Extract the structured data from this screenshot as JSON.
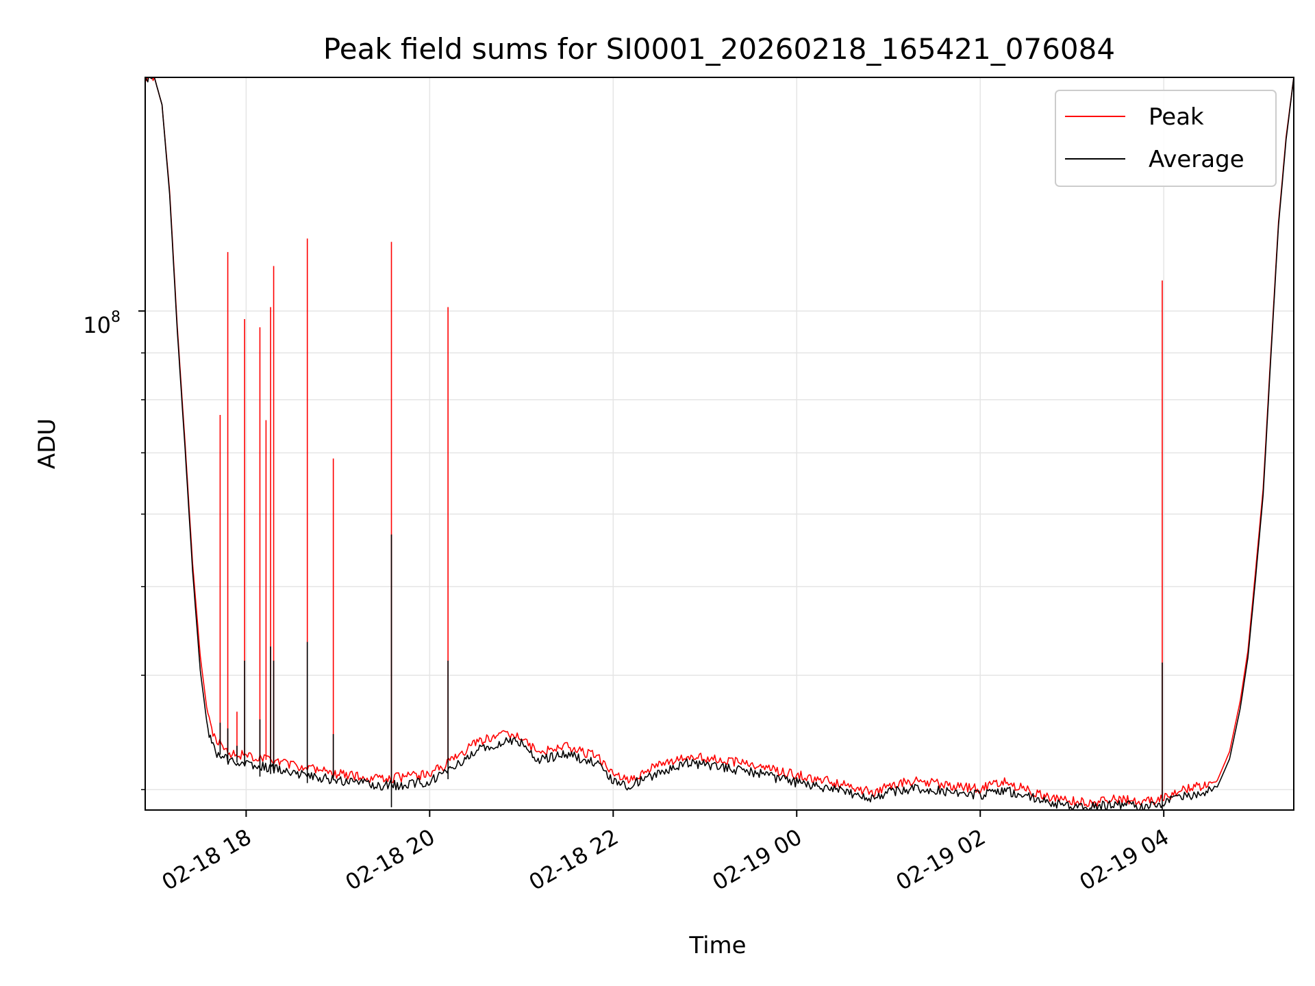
{
  "chart_data": {
    "type": "line",
    "title": "Peak field sums for SI0001_20260218_165421_076084",
    "xlabel": "Time",
    "ylabel": "ADU",
    "y_scale": "log",
    "y_tick_label": {
      "base": "10",
      "exponent": "8"
    },
    "x_ticks": [
      "02-18 18",
      "02-18 20",
      "02-18 22",
      "02-19 00",
      "02-19 02",
      "02-19 04"
    ],
    "xlim": [
      "2026-02-18 16:54",
      "2026-02-19 05:25"
    ],
    "ylim": [
      28500000,
      180000000
    ],
    "grid": true,
    "legend_position": "top-right",
    "colors": {
      "peak": "#ff0000",
      "average": "#000000",
      "grid": "#e5e5e5"
    },
    "series": [
      {
        "name": "Peak",
        "color": "#ff0000",
        "baseline_points": [
          [
            "2026-02-18 16:54",
            180000000
          ],
          [
            "2026-02-18 17:00",
            180000000
          ],
          [
            "2026-02-18 17:05",
            168000000
          ],
          [
            "2026-02-18 17:10",
            135000000
          ],
          [
            "2026-02-18 17:15",
            96000000
          ],
          [
            "2026-02-18 17:20",
            72000000
          ],
          [
            "2026-02-18 17:25",
            53000000
          ],
          [
            "2026-02-18 17:30",
            42000000
          ],
          [
            "2026-02-18 17:35",
            36000000
          ],
          [
            "2026-02-18 17:40",
            34000000
          ],
          [
            "2026-02-18 17:50",
            32900000
          ],
          [
            "2026-02-18 18:10",
            32400000
          ],
          [
            "2026-02-18 18:40",
            31700000
          ],
          [
            "2026-02-18 19:00",
            31200000
          ],
          [
            "2026-02-18 19:30",
            30800000
          ],
          [
            "2026-02-18 19:45",
            31000000
          ],
          [
            "2026-02-18 20:00",
            31200000
          ],
          [
            "2026-02-18 20:15",
            32300000
          ],
          [
            "2026-02-18 20:30",
            33800000
          ],
          [
            "2026-02-18 20:50",
            34600000
          ],
          [
            "2026-02-18 21:00",
            34400000
          ],
          [
            "2026-02-18 21:10",
            32900000
          ],
          [
            "2026-02-18 21:30",
            33400000
          ],
          [
            "2026-02-18 21:50",
            32600000
          ],
          [
            "2026-02-18 22:00",
            31100000
          ],
          [
            "2026-02-18 22:10",
            30800000
          ],
          [
            "2026-02-18 22:30",
            31900000
          ],
          [
            "2026-02-18 22:50",
            32700000
          ],
          [
            "2026-02-18 23:10",
            32300000
          ],
          [
            "2026-02-18 23:30",
            32000000
          ],
          [
            "2026-02-18 23:50",
            31400000
          ],
          [
            "2026-02-19 00:10",
            30900000
          ],
          [
            "2026-02-19 00:30",
            30400000
          ],
          [
            "2026-02-19 00:50",
            29800000
          ],
          [
            "2026-02-19 01:00",
            30300000
          ],
          [
            "2026-02-19 01:20",
            30700000
          ],
          [
            "2026-02-19 01:40",
            30300000
          ],
          [
            "2026-02-19 02:00",
            30100000
          ],
          [
            "2026-02-19 02:15",
            30600000
          ],
          [
            "2026-02-19 02:30",
            30000000
          ],
          [
            "2026-02-19 02:50",
            29300000
          ],
          [
            "2026-02-19 03:10",
            29000000
          ],
          [
            "2026-02-19 03:30",
            29300000
          ],
          [
            "2026-02-19 03:50",
            29100000
          ],
          [
            "2026-02-19 04:00",
            29400000
          ],
          [
            "2026-02-19 04:10",
            29900000
          ],
          [
            "2026-02-19 04:25",
            30300000
          ],
          [
            "2026-02-19 04:35",
            30700000
          ],
          [
            "2026-02-19 04:43",
            33000000
          ],
          [
            "2026-02-19 04:50",
            37500000
          ],
          [
            "2026-02-19 04:55",
            42500000
          ],
          [
            "2026-02-19 05:00",
            52000000
          ],
          [
            "2026-02-19 05:05",
            64000000
          ],
          [
            "2026-02-19 05:10",
            90000000
          ],
          [
            "2026-02-19 05:15",
            125000000
          ],
          [
            "2026-02-19 05:20",
            155000000
          ],
          [
            "2026-02-19 05:25",
            180000000
          ]
        ],
        "spikes": [
          [
            "2026-02-18 17:43",
            77000000
          ],
          [
            "2026-02-18 17:48",
            116000000
          ],
          [
            "2026-02-18 17:54",
            36500000
          ],
          [
            "2026-02-18 17:59",
            98000000
          ],
          [
            "2026-02-18 18:09",
            96000000
          ],
          [
            "2026-02-18 18:13",
            76000000
          ],
          [
            "2026-02-18 18:16",
            101000000
          ],
          [
            "2026-02-18 18:18",
            112000000
          ],
          [
            "2026-02-18 18:40",
            120000000
          ],
          [
            "2026-02-18 18:57",
            69000000
          ],
          [
            "2026-02-18 19:35",
            119000000
          ],
          [
            "2026-02-18 20:12",
            101000000
          ],
          [
            "2026-02-19 03:59",
            108000000
          ]
        ]
      },
      {
        "name": "Average",
        "color": "#000000",
        "baseline_points": [
          [
            "2026-02-18 16:54",
            180000000
          ],
          [
            "2026-02-18 17:00",
            180000000
          ],
          [
            "2026-02-18 17:05",
            168000000
          ],
          [
            "2026-02-18 17:10",
            134000000
          ],
          [
            "2026-02-18 17:15",
            95000000
          ],
          [
            "2026-02-18 17:20",
            71000000
          ],
          [
            "2026-02-18 17:25",
            52000000
          ],
          [
            "2026-02-18 17:30",
            40500000
          ],
          [
            "2026-02-18 17:35",
            34800000
          ],
          [
            "2026-02-18 17:40",
            33000000
          ],
          [
            "2026-02-18 17:50",
            32200000
          ],
          [
            "2026-02-18 18:10",
            31800000
          ],
          [
            "2026-02-18 18:40",
            31100000
          ],
          [
            "2026-02-18 19:00",
            30700000
          ],
          [
            "2026-02-18 19:30",
            30300000
          ],
          [
            "2026-02-18 19:45",
            30400000
          ],
          [
            "2026-02-18 20:00",
            30600000
          ],
          [
            "2026-02-18 20:15",
            31700000
          ],
          [
            "2026-02-18 20:30",
            33100000
          ],
          [
            "2026-02-18 20:50",
            33900000
          ],
          [
            "2026-02-18 21:00",
            33700000
          ],
          [
            "2026-02-18 21:10",
            32300000
          ],
          [
            "2026-02-18 21:30",
            32800000
          ],
          [
            "2026-02-18 21:50",
            32000000
          ],
          [
            "2026-02-18 22:00",
            30600000
          ],
          [
            "2026-02-18 22:10",
            30300000
          ],
          [
            "2026-02-18 22:30",
            31300000
          ],
          [
            "2026-02-18 22:50",
            32100000
          ],
          [
            "2026-02-18 23:10",
            31700000
          ],
          [
            "2026-02-18 23:30",
            31400000
          ],
          [
            "2026-02-18 23:50",
            30800000
          ],
          [
            "2026-02-19 00:10",
            30300000
          ],
          [
            "2026-02-19 00:30",
            29900000
          ],
          [
            "2026-02-19 00:50",
            29300000
          ],
          [
            "2026-02-19 01:00",
            29800000
          ],
          [
            "2026-02-19 01:20",
            30100000
          ],
          [
            "2026-02-19 01:40",
            29800000
          ],
          [
            "2026-02-19 02:00",
            29600000
          ],
          [
            "2026-02-19 02:15",
            30000000
          ],
          [
            "2026-02-19 02:30",
            29500000
          ],
          [
            "2026-02-19 02:50",
            28900000
          ],
          [
            "2026-02-19 03:10",
            28700000
          ],
          [
            "2026-02-19 03:30",
            28900000
          ],
          [
            "2026-02-19 03:50",
            28700000
          ],
          [
            "2026-02-19 04:00",
            29000000
          ],
          [
            "2026-02-19 04:10",
            29400000
          ],
          [
            "2026-02-19 04:25",
            29800000
          ],
          [
            "2026-02-19 04:35",
            30200000
          ],
          [
            "2026-02-19 04:43",
            32400000
          ],
          [
            "2026-02-19 04:50",
            36800000
          ],
          [
            "2026-02-19 04:55",
            41800000
          ],
          [
            "2026-02-19 05:00",
            51000000
          ],
          [
            "2026-02-19 05:05",
            63000000
          ],
          [
            "2026-02-19 05:10",
            89000000
          ],
          [
            "2026-02-19 05:15",
            124000000
          ],
          [
            "2026-02-19 05:20",
            154000000
          ],
          [
            "2026-02-19 05:25",
            180000000
          ]
        ],
        "spikes": [
          [
            "2026-02-18 17:43",
            35500000
          ],
          [
            "2026-02-18 17:48",
            35000000
          ],
          [
            "2026-02-18 17:54",
            33500000
          ],
          [
            "2026-02-18 17:59",
            41500000
          ],
          [
            "2026-02-18 18:09",
            35800000
          ],
          [
            "2026-02-18 18:16",
            43000000
          ],
          [
            "2026-02-18 18:18",
            41500000
          ],
          [
            "2026-02-18 18:40",
            43500000
          ],
          [
            "2026-02-18 18:57",
            34500000
          ],
          [
            "2026-02-18 19:35",
            57000000
          ],
          [
            "2026-02-18 20:12",
            41500000
          ],
          [
            "2026-02-19 03:59",
            41300000
          ]
        ],
        "dips": [
          [
            "2026-02-18 18:09",
            31000000
          ],
          [
            "2026-02-18 18:16",
            31200000
          ],
          [
            "2026-02-18 18:40",
            30500000
          ],
          [
            "2026-02-18 19:35",
            28700000
          ],
          [
            "2026-02-18 20:12",
            30800000
          ],
          [
            "2026-02-19 03:59",
            28400000
          ]
        ]
      }
    ]
  }
}
